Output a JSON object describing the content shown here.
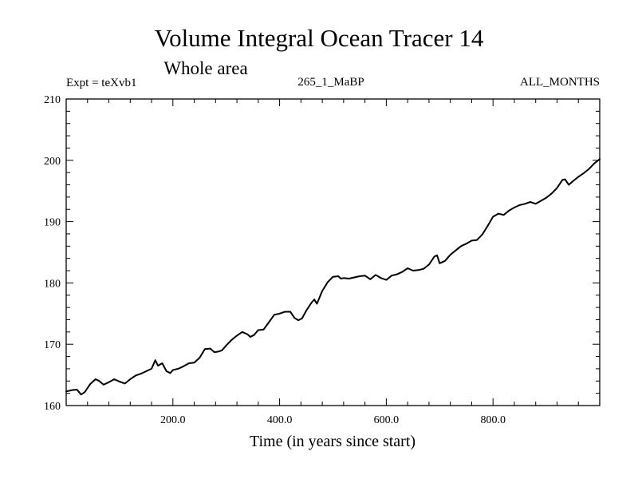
{
  "chart_data": {
    "type": "line",
    "title": "Volume Integral Ocean Tracer 14",
    "subtitle": "Whole area",
    "expt_label": "Expt = teXvb1",
    "run_label": "265_1_MaBP",
    "months_label": "ALL_MONTHS",
    "xlabel": "Time (in years since start)",
    "ylabel": "",
    "xlim": [
      0,
      1000
    ],
    "ylim": [
      160,
      210
    ],
    "xticks": [
      {
        "value": 200,
        "label": "200.0"
      },
      {
        "value": 400,
        "label": "400.0"
      },
      {
        "value": 600,
        "label": "600.0"
      },
      {
        "value": 800,
        "label": "800.0"
      }
    ],
    "yticks": [
      {
        "value": 160,
        "label": "160"
      },
      {
        "value": 170,
        "label": "170"
      },
      {
        "value": 180,
        "label": "180"
      },
      {
        "value": 190,
        "label": "190"
      },
      {
        "value": 200,
        "label": "200"
      },
      {
        "value": 210,
        "label": "210"
      }
    ],
    "series": [
      {
        "name": "Volume Integral Ocean Tracer 14",
        "color": "#000000",
        "x": [
          0,
          10,
          20,
          28,
          35,
          45,
          55,
          62,
          70,
          80,
          90,
          100,
          110,
          120,
          130,
          140,
          150,
          160,
          167,
          172,
          180,
          188,
          195,
          200,
          210,
          220,
          230,
          240,
          250,
          260,
          270,
          278,
          285,
          292,
          300,
          310,
          320,
          330,
          340,
          345,
          352,
          360,
          370,
          380,
          390,
          400,
          410,
          420,
          428,
          435,
          442,
          450,
          460,
          465,
          470,
          480,
          490,
          500,
          510,
          515,
          520,
          530,
          540,
          550,
          560,
          570,
          580,
          590,
          600,
          610,
          620,
          630,
          640,
          650,
          660,
          670,
          680,
          690,
          695,
          700,
          710,
          720,
          730,
          740,
          750,
          760,
          770,
          780,
          790,
          800,
          810,
          820,
          830,
          840,
          850,
          860,
          870,
          880,
          890,
          900,
          910,
          920,
          930,
          935,
          942,
          950,
          960,
          970,
          980,
          990,
          1000
        ],
        "values": [
          162.3,
          162.5,
          162.6,
          161.8,
          162.2,
          163.5,
          164.3,
          164.0,
          163.4,
          163.8,
          164.3,
          163.9,
          163.6,
          164.3,
          164.9,
          165.2,
          165.6,
          166.0,
          167.4,
          166.5,
          166.9,
          165.6,
          165.3,
          165.8,
          166.0,
          166.4,
          166.9,
          167.0,
          167.8,
          169.2,
          169.3,
          168.7,
          168.8,
          169.0,
          169.8,
          170.7,
          171.4,
          172.0,
          171.6,
          171.2,
          171.5,
          172.3,
          172.4,
          173.6,
          174.8,
          175.0,
          175.3,
          175.3,
          174.3,
          173.9,
          174.2,
          175.5,
          176.8,
          177.3,
          176.6,
          178.7,
          180.1,
          181.0,
          181.1,
          180.7,
          180.8,
          180.7,
          180.9,
          181.1,
          181.2,
          180.6,
          181.3,
          180.8,
          180.5,
          181.2,
          181.4,
          181.8,
          182.4,
          182.0,
          182.1,
          182.3,
          183.0,
          184.3,
          184.5,
          183.2,
          183.6,
          184.6,
          185.3,
          186.0,
          186.4,
          186.9,
          187.0,
          187.9,
          189.3,
          190.8,
          191.3,
          191.1,
          191.8,
          192.3,
          192.7,
          192.9,
          193.2,
          192.9,
          193.4,
          193.9,
          194.6,
          195.5,
          196.8,
          196.9,
          196.0,
          196.6,
          197.3,
          197.9,
          198.6,
          199.5,
          200.2
        ]
      }
    ]
  }
}
